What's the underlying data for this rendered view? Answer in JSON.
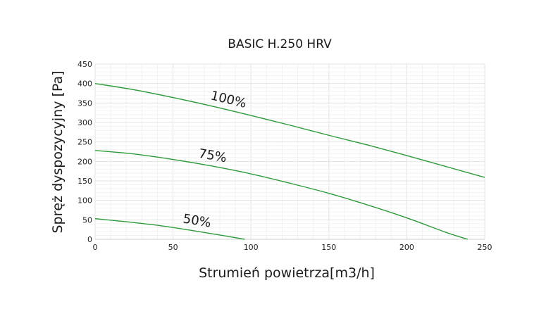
{
  "chart_data": {
    "type": "line",
    "title": "BASIC H.250 HRV",
    "xlabel": "Strumień powietrza[m3/h]",
    "ylabel": "Spręż dyspozycyjny [Pa]",
    "xlim": [
      0,
      250
    ],
    "ylim": [
      0,
      450
    ],
    "x_ticks": [
      "0",
      "50",
      "100",
      "150",
      "200",
      "250"
    ],
    "y_ticks": [
      "0",
      "50",
      "100",
      "150",
      "200",
      "250",
      "300",
      "350",
      "400",
      "450"
    ],
    "grid": true,
    "line_color": "#2e9a3c",
    "series": [
      {
        "name": "100%",
        "x": [
          0,
          25,
          50,
          75,
          100,
          125,
          150,
          175,
          200,
          225,
          250
        ],
        "y": [
          400,
          384,
          364,
          342,
          318,
          293,
          267,
          242,
          215,
          187,
          159
        ]
      },
      {
        "name": "75%",
        "x": [
          0,
          25,
          50,
          75,
          100,
          125,
          150,
          175,
          200,
          225,
          239
        ],
        "y": [
          228,
          219,
          205,
          188,
          168,
          144,
          118,
          88,
          55,
          18,
          0
        ]
      },
      {
        "name": "50%",
        "x": [
          0,
          20,
          40,
          60,
          80,
          96
        ],
        "y": [
          53,
          45,
          36,
          24,
          11,
          0
        ]
      }
    ]
  }
}
